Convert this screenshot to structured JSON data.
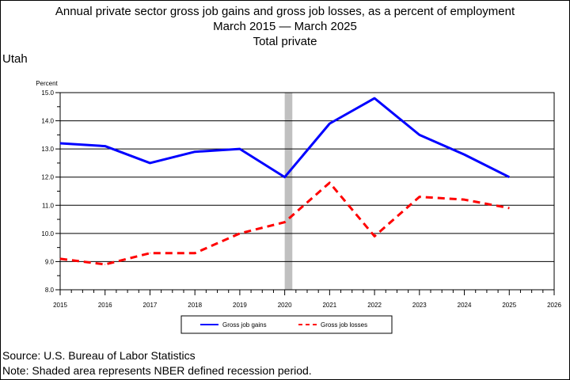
{
  "title_lines": [
    "Annual private sector gross job gains and gross job losses, as a percent of employment",
    "March 2015 — March 2025",
    "Total private"
  ],
  "region": "Utah",
  "source": "Source: U.S. Bureau of Labor Statistics",
  "note": "Note: Shaded area represents NBER defined recession period.",
  "chart_data": {
    "type": "line",
    "title": "Annual private sector gross job gains and gross job losses, as a percent of employment",
    "ylabel": "Percent",
    "xlabel": "",
    "xlim": [
      2015,
      2026
    ],
    "ylim": [
      8.0,
      15.0
    ],
    "x_ticks": [
      "2015",
      "2016",
      "2017",
      "2018",
      "2019",
      "2020",
      "2021",
      "2022",
      "2023",
      "2024",
      "2025",
      "2026"
    ],
    "y_ticks": [
      "8.0",
      "9.0",
      "10.0",
      "11.0",
      "12.0",
      "13.0",
      "14.0",
      "15.0"
    ],
    "grid": true,
    "legend_position": "bottom",
    "recession": [
      2020.0,
      2020.17
    ],
    "x": [
      2015,
      2016,
      2017,
      2018,
      2019,
      2020,
      2021,
      2022,
      2023,
      2024,
      2025
    ],
    "series": [
      {
        "name": "Gross job gains",
        "color": "#0000ff",
        "style": "solid",
        "values": [
          13.2,
          13.1,
          12.5,
          12.9,
          13.0,
          12.0,
          13.9,
          14.8,
          13.5,
          12.8,
          12.0
        ]
      },
      {
        "name": "Gross job losses",
        "color": "#ff0000",
        "style": "dashed",
        "values": [
          9.1,
          8.9,
          9.3,
          9.3,
          10.0,
          10.4,
          11.8,
          9.9,
          11.3,
          11.2,
          10.9
        ]
      }
    ]
  }
}
